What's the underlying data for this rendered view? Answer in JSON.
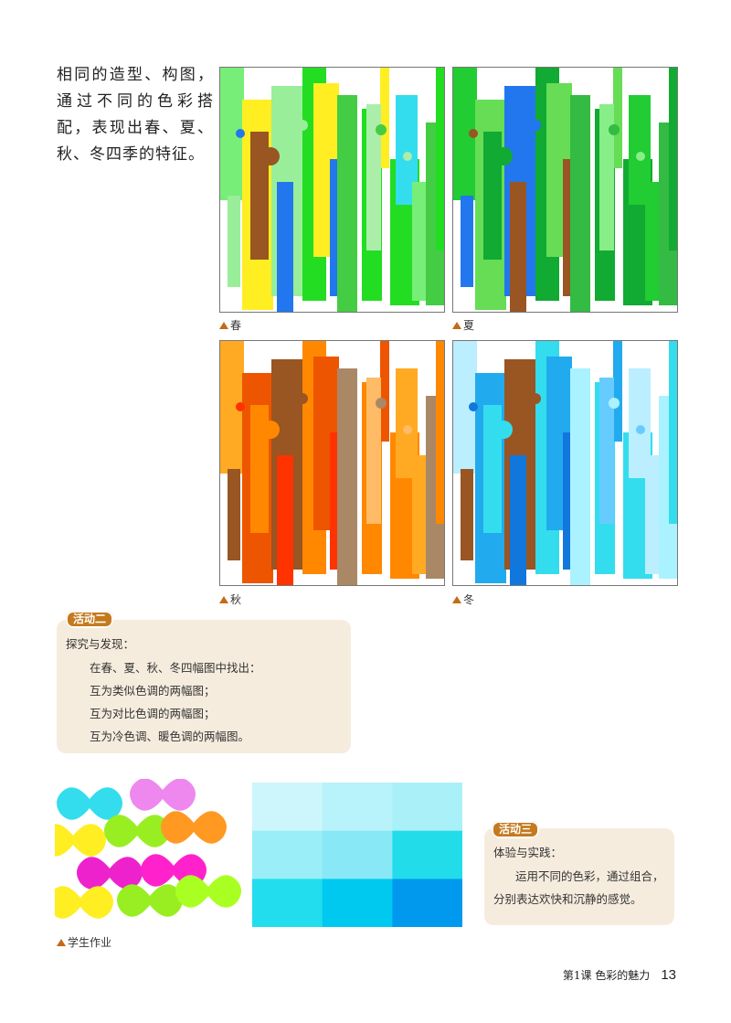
{
  "intro": "相同的造型、构图，通过不同的色彩搭配，表现出春、夏、秋、冬四季的特征。",
  "panels": [
    {
      "caption": "春"
    },
    {
      "caption": "夏"
    },
    {
      "caption": "秋"
    },
    {
      "caption": "冬"
    }
  ],
  "activity2": {
    "tag": "活动二",
    "heading": "探究与发现：",
    "lines": [
      "在春、夏、秋、冬四幅图中找出：",
      "互为类似色调的两幅图；",
      "互为对比色调的两幅图；",
      "互为冷色调、暖色调的两幅图。"
    ]
  },
  "student_caption": "学生作业",
  "activity3": {
    "tag": "活动三",
    "heading": "体验与实践：",
    "body": "运用不同的色彩，通过组合，分别表达欢快和沉静的感觉。"
  },
  "footer": {
    "lesson": "第1课  色彩的魅力",
    "page": "13"
  },
  "colors": {
    "spring": [
      "#22dd22",
      "#77ee77",
      "#ffee22",
      "#2277ee",
      "#99ee99",
      "#44cc44",
      "#aaeeaa",
      "#995522",
      "#33ddee"
    ],
    "summer": [
      "#11aa33",
      "#22cc33",
      "#66dd55",
      "#995522",
      "#2277ee",
      "#33bb44",
      "#88ee88"
    ],
    "autumn": [
      "#ff8800",
      "#ffaa22",
      "#ee5500",
      "#ff3300",
      "#995522",
      "#aa8866",
      "#ffbb66"
    ],
    "winter": [
      "#33ddee",
      "#bbeeff",
      "#22aaee",
      "#1177dd",
      "#995522",
      "#aaf2ff",
      "#66ccff"
    ],
    "activity_bg": "#f6ecde",
    "tag_bg": "#c47a1e"
  }
}
